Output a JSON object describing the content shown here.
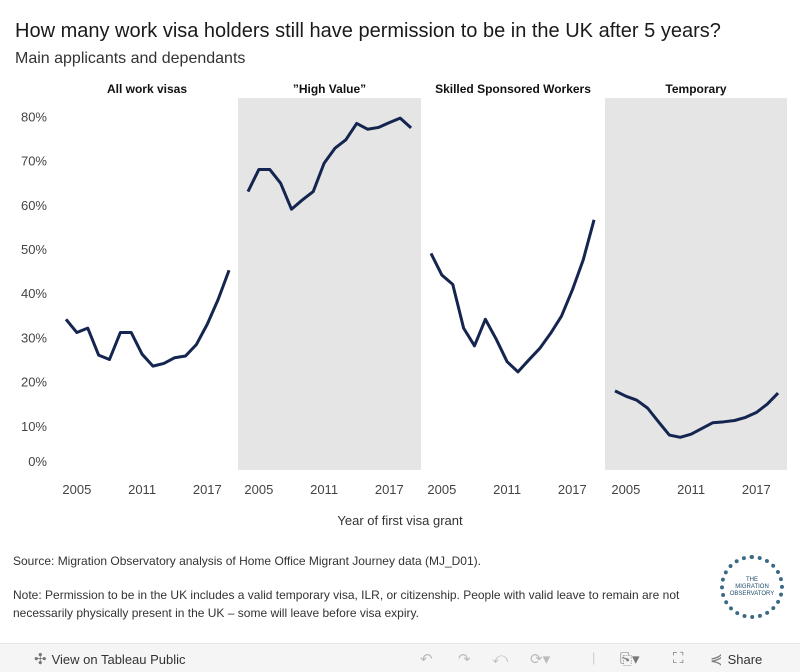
{
  "title": "How many work visa holders still have permission to be in the UK after 5 years?",
  "subtitle": "Main applicants and dependants",
  "chart_data": {
    "type": "line",
    "title": "How many work visa holders still have permission to be in the UK after 5 years?",
    "xlabel": "Year of first visa grant",
    "ylabel": "",
    "ylim": [
      0,
      80
    ],
    "yticks": [
      "0%",
      "10%",
      "20%",
      "30%",
      "40%",
      "50%",
      "60%",
      "70%",
      "80%"
    ],
    "ytick_values": [
      0,
      10,
      20,
      30,
      40,
      50,
      60,
      70,
      80
    ],
    "xticks": [
      "2005",
      "2011",
      "2017"
    ],
    "xtick_values": [
      2005,
      2011,
      2017
    ],
    "x": [
      2004,
      2005,
      2006,
      2007,
      2008,
      2009,
      2010,
      2011,
      2012,
      2013,
      2014,
      2015,
      2016,
      2017,
      2018,
      2019
    ],
    "color": "#14254f",
    "panels": [
      {
        "name": "All work visas",
        "values": [
          34.1,
          31.1,
          32.1,
          26.0,
          25.0,
          31.1,
          31.1,
          26.2,
          23.5,
          24.1,
          25.4,
          25.8,
          28.4,
          33.0,
          38.6,
          45.2
        ]
      },
      {
        "name": "”High Value”",
        "values": [
          63.0,
          68.0,
          68.0,
          64.9,
          59.0,
          61.1,
          63.0,
          69.4,
          72.8,
          74.7,
          78.4,
          77.1,
          77.5,
          78.6,
          79.6,
          77.4
        ]
      },
      {
        "name": "Skilled Sponsored Workers",
        "values": [
          49.0,
          44.1,
          42.0,
          32.1,
          28.1,
          34.1,
          29.6,
          24.5,
          22.2,
          24.9,
          27.5,
          30.9,
          34.8,
          40.7,
          47.5,
          56.6
        ]
      },
      {
        "name": "Temporary",
        "values": [
          17.9,
          16.7,
          15.8,
          14.0,
          10.9,
          7.9,
          7.4,
          8.1,
          9.4,
          10.7,
          10.9,
          11.2,
          11.9,
          13.0,
          14.9,
          17.4
        ]
      }
    ]
  },
  "source": "Source: Migration Observatory analysis of Home Office Migrant Journey data (MJ_D01).",
  "note": "Note: Permission to be in the UK includes a valid temporary visa, ILR, or citizenship. People with valid leave to remain are not necessarily physically present in the UK – some will leave before visa expiry.",
  "logo_text": "THE MIGRATION OBSERVATORY",
  "footer": {
    "view": "View on Tableau Public",
    "share": "Share"
  }
}
